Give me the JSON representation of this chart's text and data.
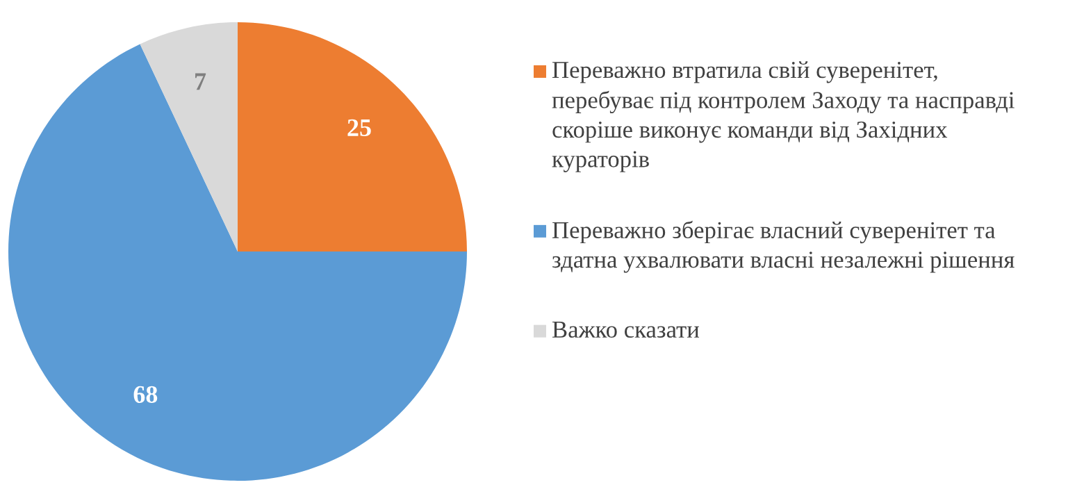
{
  "chart_data": {
    "type": "pie",
    "categories": [
      "Переважно втратила свій суверенітет, перебуває під контролем Заходу та насправді скоріше виконує команди від Західних кураторів",
      "Переважно зберігає власний суверенітет та здатна ухвалювати власні незалежні рішення",
      "Важко сказати"
    ],
    "values": [
      25,
      68,
      7
    ],
    "colors": [
      "#ed7d31",
      "#5b9bd5",
      "#d9d9d9"
    ],
    "data_labels": true,
    "legend": "right"
  }
}
